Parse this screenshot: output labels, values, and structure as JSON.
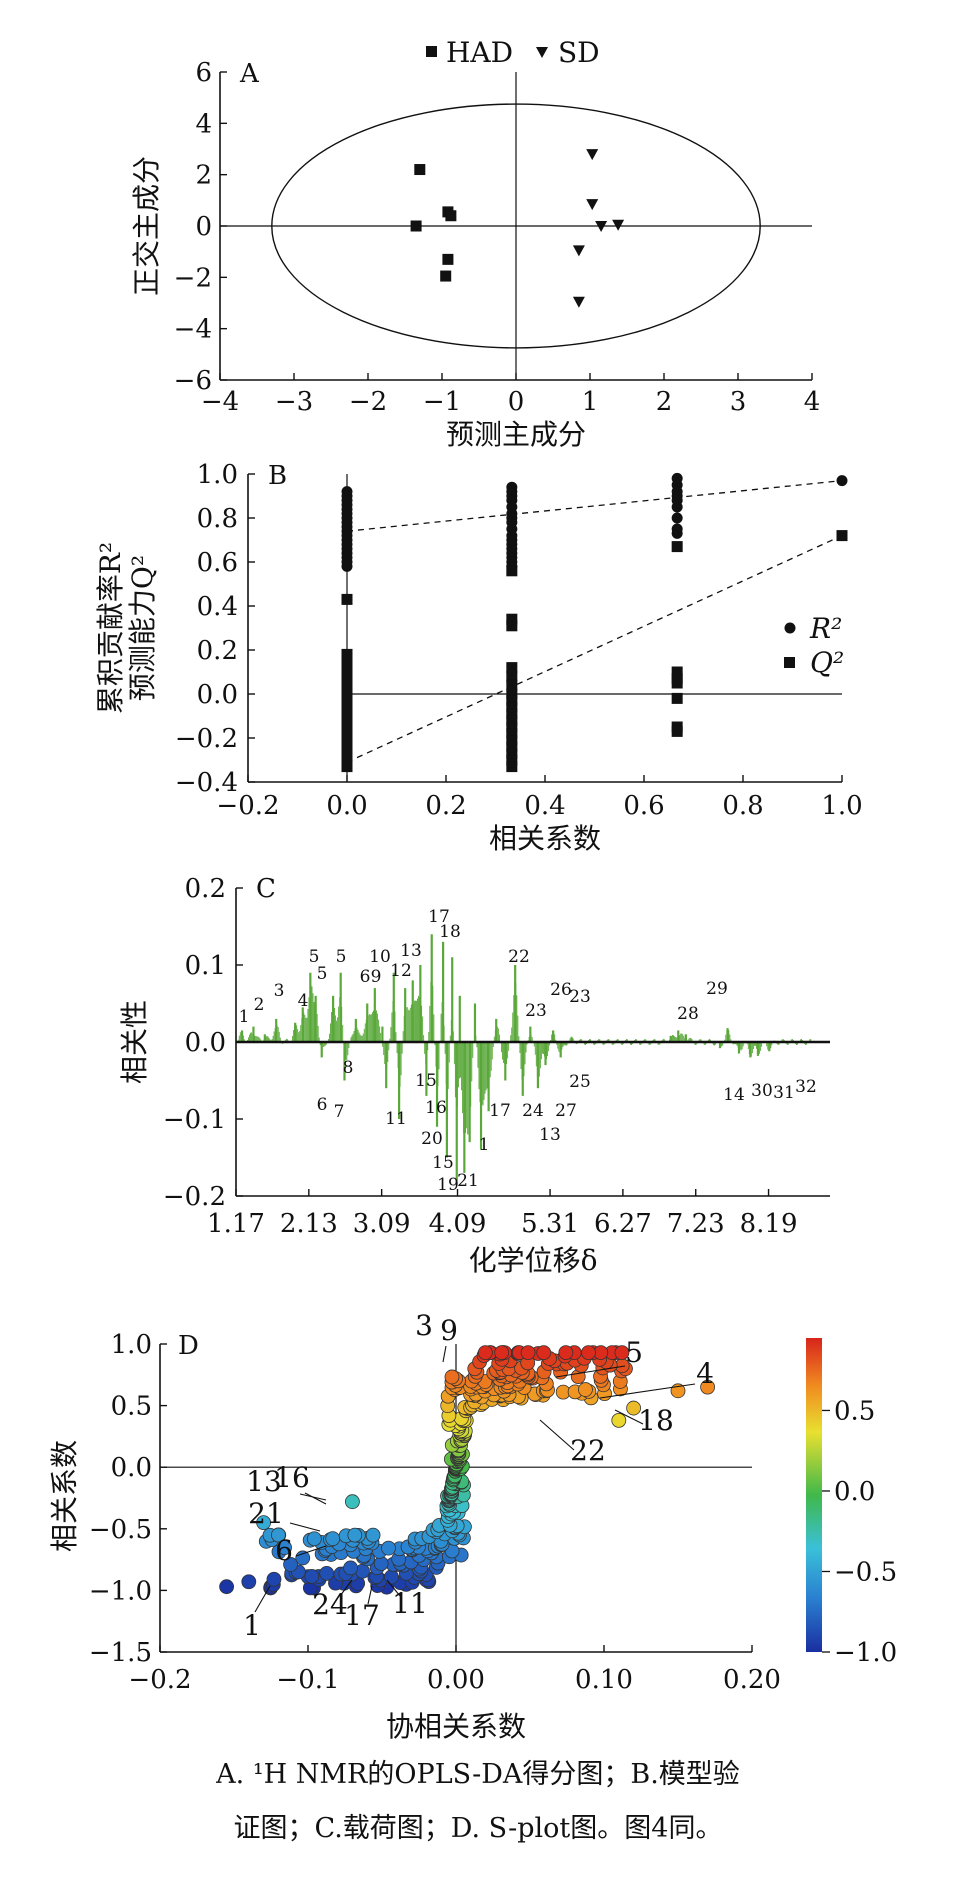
{
  "caption": {
    "line1": "A. ¹H NMR的OPLS-DA得分图；B.模型验",
    "line2": "证图；C.载荷图；D. S-plot图。图4同。"
  },
  "chart_data": [
    {
      "panel": "A",
      "type": "scatter",
      "xlabel": "预测主成分",
      "ylabel": "正交主成分",
      "xlim": [
        -4,
        4
      ],
      "ylim": [
        -6,
        6
      ],
      "xticks": [
        "−4",
        "−3",
        "−2",
        "−1",
        "0",
        "1",
        "2",
        "3",
        "4"
      ],
      "yticks": [
        "6",
        "4",
        "2",
        "0",
        "−2",
        "−4",
        "−6"
      ],
      "legend": {
        "position": "top",
        "entries": [
          "HAD",
          "SD"
        ]
      },
      "ellipse": {
        "rx": 3.3,
        "ry": 4.75
      },
      "series": [
        {
          "name": "HAD",
          "marker": "square",
          "x": [
            -1.3,
            -1.35,
            -0.92,
            -0.88,
            -0.92,
            -0.95
          ],
          "y": [
            2.2,
            0.0,
            0.55,
            0.4,
            -1.3,
            -1.95
          ]
        },
        {
          "name": "SD",
          "marker": "triangle",
          "x": [
            1.03,
            1.03,
            1.15,
            1.38,
            0.85,
            0.85
          ],
          "y": [
            2.8,
            0.85,
            0.0,
            0.05,
            -0.95,
            -2.95
          ]
        }
      ]
    },
    {
      "panel": "B",
      "type": "scatter",
      "xlabel": "相关系数",
      "ylabel_line1": "累积贡献率R²",
      "ylabel_line2": "预测能力Q²",
      "xlim": [
        -0.2,
        1.0
      ],
      "ylim": [
        -0.4,
        1.0
      ],
      "xticks": [
        "−0.2",
        "0.0",
        "0.2",
        "0.4",
        "0.6",
        "0.8",
        "1.0"
      ],
      "yticks": [
        "1.0",
        "0.8",
        "0.6",
        "0.4",
        "0.2",
        "0.0",
        "−0.2",
        "−0.4"
      ],
      "legend": {
        "position": "right",
        "entries": [
          "R²",
          "Q²"
        ]
      },
      "series": [
        {
          "name": "R²",
          "marker": "circle",
          "x": [
            0,
            0,
            0,
            0,
            0,
            0,
            0,
            0,
            0,
            0,
            0,
            0,
            0,
            0,
            0,
            0,
            0,
            0,
            0.333,
            0.333,
            0.333,
            0.333,
            0.333,
            0.333,
            0.333,
            0.333,
            0.333,
            0.333,
            0.333,
            0.333,
            0.333,
            0.333,
            0.333,
            0.333,
            0.333,
            0.667,
            0.667,
            0.667,
            0.667,
            0.667,
            0.667,
            0.667,
            0.667,
            0.667,
            1.0
          ],
          "y": [
            0.92,
            0.9,
            0.88,
            0.86,
            0.84,
            0.82,
            0.8,
            0.78,
            0.76,
            0.74,
            0.72,
            0.7,
            0.68,
            0.66,
            0.64,
            0.62,
            0.6,
            0.58,
            0.94,
            0.92,
            0.9,
            0.88,
            0.85,
            0.82,
            0.8,
            0.78,
            0.75,
            0.72,
            0.7,
            0.68,
            0.66,
            0.64,
            0.62,
            0.6,
            0.58,
            0.98,
            0.95,
            0.92,
            0.9,
            0.88,
            0.85,
            0.8,
            0.75,
            0.73,
            0.97
          ]
        },
        {
          "name": "Q²",
          "marker": "square",
          "x": [
            0,
            0,
            0,
            0,
            0,
            0,
            0,
            0,
            0,
            0,
            0,
            0,
            0,
            0,
            0,
            0,
            0,
            0,
            0.333,
            0.333,
            0.333,
            0.333,
            0.333,
            0.333,
            0.333,
            0.333,
            0.333,
            0.333,
            0.333,
            0.333,
            0.333,
            0.333,
            0.333,
            0.333,
            0.333,
            0.333,
            0.667,
            0.667,
            0.667,
            0.667,
            0.667,
            0.667,
            0.667,
            1.0
          ],
          "y": [
            0.43,
            0.18,
            0.14,
            0.1,
            0.06,
            0.02,
            -0.02,
            -0.06,
            -0.08,
            -0.1,
            -0.13,
            -0.16,
            -0.19,
            -0.22,
            -0.25,
            -0.28,
            -0.31,
            -0.33,
            0.56,
            0.34,
            0.31,
            0.12,
            0.08,
            0.04,
            0.0,
            -0.03,
            -0.06,
            -0.09,
            -0.12,
            -0.15,
            -0.18,
            -0.21,
            -0.24,
            -0.27,
            -0.3,
            -0.33,
            0.67,
            0.1,
            0.07,
            0.05,
            -0.02,
            -0.15,
            -0.17,
            0.72
          ]
        }
      ],
      "reference_lines": [
        {
          "series": "R²",
          "x": [
            0,
            1.0
          ],
          "y": [
            0.74,
            0.97
          ]
        },
        {
          "series": "Q²",
          "x": [
            0,
            1.0
          ],
          "y": [
            -0.31,
            0.72
          ]
        }
      ]
    },
    {
      "panel": "C",
      "type": "bar",
      "xlabel": "化学位移δ",
      "ylabel": "相关性",
      "xlim": [
        1.17,
        9.0
      ],
      "ylim": [
        -0.2,
        0.2
      ],
      "xticks": [
        "1.17",
        "2.13",
        "3.09",
        "4.09",
        "5.31",
        "6.27",
        "7.23",
        "8.19"
      ],
      "yticks": [
        "0.2",
        "0.1",
        "0.0",
        "−0.1",
        "−0.2"
      ],
      "color": "#5aa83a",
      "peaks": [
        {
          "x": 1.25,
          "y": 0.015
        },
        {
          "x": 1.4,
          "y": 0.02
        },
        {
          "x": 1.55,
          "y": 0.01
        },
        {
          "x": 1.7,
          "y": 0.03
        },
        {
          "x": 1.95,
          "y": 0.025
        },
        {
          "x": 2.05,
          "y": 0.045
        },
        {
          "x": 2.15,
          "y": 0.09
        },
        {
          "x": 2.22,
          "y": 0.06
        },
        {
          "x": 2.3,
          "y": -0.02
        },
        {
          "x": 2.45,
          "y": 0.06
        },
        {
          "x": 2.55,
          "y": 0.09
        },
        {
          "x": 2.6,
          "y": -0.05
        },
        {
          "x": 2.75,
          "y": 0.03
        },
        {
          "x": 2.9,
          "y": 0.05
        },
        {
          "x": 3.0,
          "y": 0.07
        },
        {
          "x": 3.1,
          "y": 0.02
        },
        {
          "x": 3.15,
          "y": -0.06
        },
        {
          "x": 3.25,
          "y": 0.09
        },
        {
          "x": 3.32,
          "y": -0.1
        },
        {
          "x": 3.4,
          "y": 0.07
        },
        {
          "x": 3.5,
          "y": 0.08
        },
        {
          "x": 3.6,
          "y": 0.1
        },
        {
          "x": 3.68,
          "y": -0.07
        },
        {
          "x": 3.75,
          "y": 0.14
        },
        {
          "x": 3.82,
          "y": -0.11
        },
        {
          "x": 3.9,
          "y": 0.13
        },
        {
          "x": 3.95,
          "y": -0.15
        },
        {
          "x": 4.02,
          "y": 0.11
        },
        {
          "x": 4.08,
          "y": -0.18
        },
        {
          "x": 4.12,
          "y": 0.06
        },
        {
          "x": 4.18,
          "y": -0.17
        },
        {
          "x": 4.25,
          "y": -0.13
        },
        {
          "x": 4.32,
          "y": 0.05
        },
        {
          "x": 4.4,
          "y": -0.14
        },
        {
          "x": 4.5,
          "y": -0.09
        },
        {
          "x": 4.6,
          "y": 0.03
        },
        {
          "x": 4.72,
          "y": -0.05
        },
        {
          "x": 4.85,
          "y": 0.1
        },
        {
          "x": 4.95,
          "y": -0.07
        },
        {
          "x": 5.05,
          "y": 0.02
        },
        {
          "x": 5.15,
          "y": -0.06
        },
        {
          "x": 5.25,
          "y": -0.03
        },
        {
          "x": 5.35,
          "y": 0.015
        },
        {
          "x": 5.45,
          "y": -0.02
        },
        {
          "x": 5.6,
          "y": 0.005
        },
        {
          "x": 6.9,
          "y": 0.008
        },
        {
          "x": 7.0,
          "y": 0.015
        },
        {
          "x": 7.1,
          "y": 0.01
        },
        {
          "x": 7.55,
          "y": -0.008
        },
        {
          "x": 7.65,
          "y": 0.018
        },
        {
          "x": 7.8,
          "y": -0.015
        },
        {
          "x": 7.95,
          "y": -0.02
        },
        {
          "x": 8.05,
          "y": -0.018
        },
        {
          "x": 8.2,
          "y": -0.012
        }
      ],
      "annotations": [
        "1",
        "2",
        "3",
        "4",
        "5",
        "5",
        "5",
        "6",
        "6",
        "7",
        "8",
        "9",
        "10",
        "11",
        "12",
        "13",
        "13",
        "15",
        "15",
        "16",
        "17",
        "17",
        "18",
        "19",
        "20",
        "21",
        "1",
        "22",
        "23",
        "23",
        "24",
        "25",
        "26",
        "27",
        "28",
        "29",
        "14",
        "30",
        "31",
        "32"
      ]
    },
    {
      "panel": "D",
      "type": "scatter",
      "xlabel": "协相关系数",
      "ylabel": "相关系数",
      "xlim": [
        -0.2,
        0.2
      ],
      "ylim": [
        -1.5,
        1.0
      ],
      "xticks": [
        "−0.2",
        "−0.1",
        "0.00",
        "0.10",
        "0.20"
      ],
      "yticks": [
        "1.0",
        "0.5",
        "0.0",
        "−0.5",
        "−1.0",
        "−1.5"
      ],
      "colorbar": {
        "ticks": [
          "0.5",
          "0.0",
          "−0.5",
          "−1.0"
        ],
        "range": [
          -1.0,
          0.95
        ],
        "colors": [
          "#1a2fa0",
          "#2a7fd0",
          "#3ac0d8",
          "#40b84a",
          "#e8e030",
          "#f08a20",
          "#d8241c"
        ]
      },
      "labels": [
        "3",
        "9",
        "5",
        "4",
        "18",
        "22",
        "13",
        "16",
        "21",
        "6",
        "1",
        "24",
        "17",
        "11"
      ]
    }
  ]
}
